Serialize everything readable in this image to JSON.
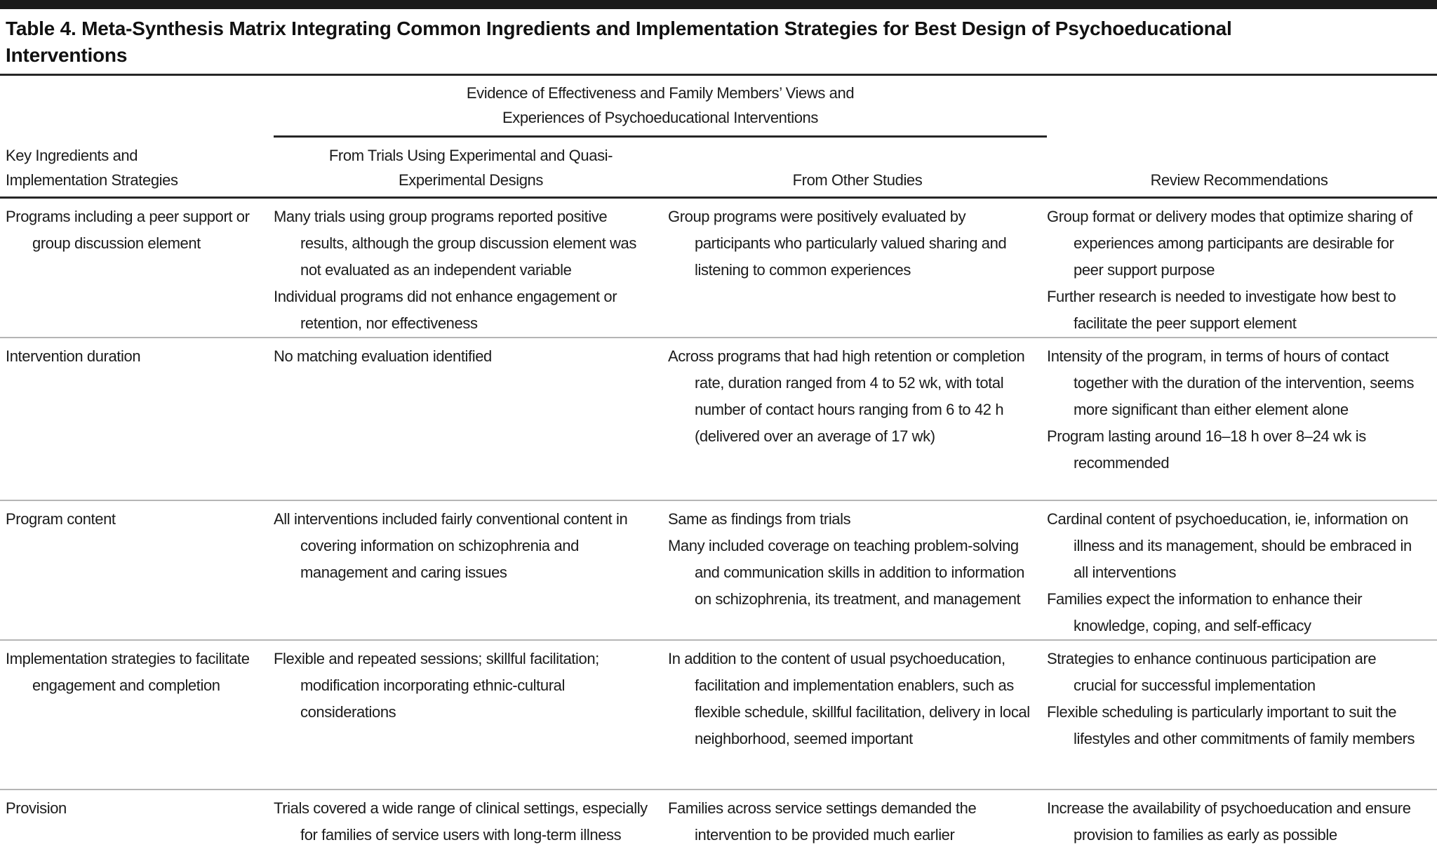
{
  "colors": {
    "text": "#1b1b1b",
    "rule_heavy": "#1a1a1a",
    "rule_medium": "#262626",
    "rule_light": "#b5b5b5",
    "background": "#ffffff"
  },
  "title": "Table 4. Meta-Synthesis Matrix Integrating Common Ingredients and Implementation Strategies for Best Design of Psychoeducational Interventions",
  "table": {
    "spanner": "Evidence of Effectiveness and Family Members’ Views and Experiences of Psychoeducational Interventions",
    "columns": [
      "Key Ingredients and Implementation Strategies",
      "From Trials Using Experimental and Quasi-Experimental Designs",
      "From Other Studies",
      "Review Recommendations"
    ],
    "rows": [
      {
        "ingredient": "Programs including a peer support or group discussion element",
        "trials": [
          "Many trials using group programs reported positive results, although the group discussion element was not evaluated as an independent variable",
          "Individual programs did not enhance engagement or retention, nor effectiveness"
        ],
        "other": [
          "Group programs were positively evaluated by participants who particularly valued sharing and listening to common experiences"
        ],
        "recommendations": [
          "Group format or delivery modes that optimize sharing of experiences among participants are desirable for peer support purpose",
          "Further research is needed to investigate how best to facilitate the peer support element"
        ]
      },
      {
        "ingredient": "Intervention duration",
        "trials": [
          "No matching evaluation identified"
        ],
        "other": [
          "Across programs that had high retention or completion rate, duration ranged from 4 to 52 wk, with total number of contact hours ranging from 6 to 42 h (delivered over an average of 17 wk)"
        ],
        "recommendations": [
          "Intensity of the program, in terms of hours of contact together with the duration of the intervention, seems more significant than either element alone",
          "Program lasting around 16–18 h over 8–24 wk is recommended"
        ]
      },
      {
        "ingredient": "Program content",
        "trials": [
          "All interventions included fairly conventional content in covering information on schizophrenia and management and caring issues"
        ],
        "other": [
          "Same as findings from trials",
          "Many included coverage on teaching problem-solving and communication skills in addition to information on schizophrenia, its treatment, and management"
        ],
        "recommendations": [
          "Cardinal content of psychoeducation, ie, information on illness and its management, should be embraced in all interventions",
          "Families expect the information to enhance their knowledge, coping, and self-efficacy"
        ]
      },
      {
        "ingredient": "Implementation strategies to facilitate engagement and completion",
        "trials": [
          "Flexible and repeated sessions; skillful facilitation; modification incorporating ethnic-cultural considerations"
        ],
        "other": [
          "In addition to the content of usual psychoeducation, facilitation and implementation enablers, such as flexible schedule, skillful facilitation, delivery in local neighborhood, seemed important"
        ],
        "recommendations": [
          "Strategies to enhance continuous participation are crucial for successful implementation",
          "Flexible scheduling is particularly important to suit the lifestyles and other commitments of family members"
        ]
      },
      {
        "ingredient": "Provision",
        "trials": [
          "Trials covered a wide range of clinical settings, especially for families of service users with long-term illness"
        ],
        "other": [
          "Families across service settings demanded the intervention to be provided much earlier"
        ],
        "recommendations": [
          "Increase the availability of psychoeducation and ensure provision to families as early as possible"
        ]
      }
    ]
  }
}
